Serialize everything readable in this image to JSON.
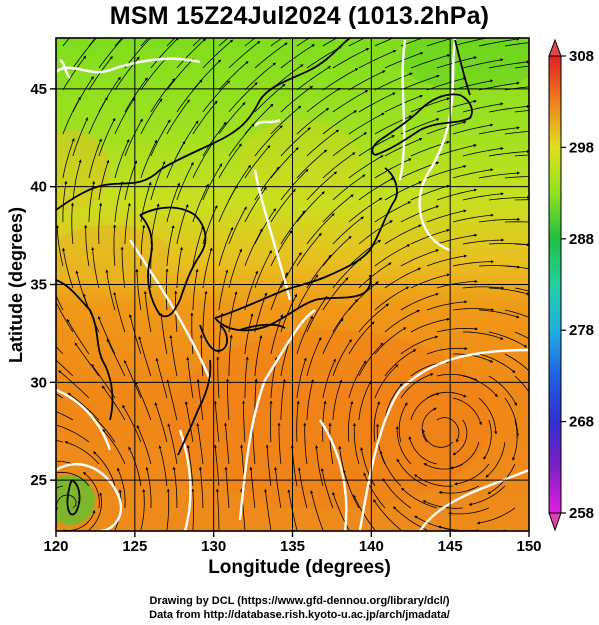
{
  "title": "MSM 15Z24Jul2024 (1013.2hPa)",
  "x_axis": {
    "label": "Longitude (degrees)",
    "ticks": [
      "120",
      "125",
      "130",
      "135",
      "140",
      "145",
      "150"
    ]
  },
  "y_axis": {
    "label": "Latitude  (degrees)",
    "ticks": [
      "25",
      "30",
      "35",
      "40",
      "45"
    ]
  },
  "colorbar": {
    "ticks": [
      "258",
      "268",
      "278",
      "288",
      "298",
      "308"
    ],
    "colors": [
      "#e020e0",
      "#6020c0",
      "#2040e0",
      "#20a0e0",
      "#20d0a0",
      "#20c040",
      "#80e020",
      "#d0e020",
      "#f0b020",
      "#f06020",
      "#e02020"
    ]
  },
  "credits": {
    "line1": "Drawing by DCL (https://www.gfd-dennou.org/library/dcl/)",
    "line2": "Data from http://database.rish.kyoto-u.ac.jp/arch/jmadata/"
  },
  "chart_data": {
    "type": "heatmap",
    "variable": "temperature with wind streamlines",
    "title": "MSM 15Z24Jul2024 (1013.2hPa)",
    "xlabel": "Longitude (degrees)",
    "ylabel": "Latitude  (degrees)",
    "xlim": [
      120,
      150
    ],
    "ylim": [
      22.4,
      47.6
    ],
    "color_range": [
      258,
      308
    ],
    "colorbar_ticks": [
      258,
      268,
      278,
      288,
      298,
      308
    ],
    "grid": true,
    "regions": [
      {
        "name": "north",
        "lat_range": [
          40,
          47.6
        ],
        "approx_value": 293
      },
      {
        "name": "mid",
        "lat_range": [
          35,
          40
        ],
        "approx_value": 298
      },
      {
        "name": "south",
        "lat_range": [
          22.4,
          35
        ],
        "approx_value": 302
      }
    ]
  }
}
